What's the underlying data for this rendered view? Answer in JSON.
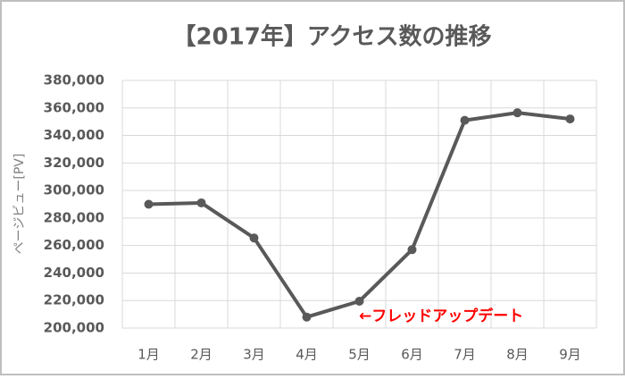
{
  "chart_data": {
    "type": "line",
    "title": "【2017年】アクセス数の推移",
    "y_label": "ページビュー[PV]",
    "annotation": "←フレッドアップデート",
    "categories": [
      "1月",
      "2月",
      "3月",
      "4月",
      "5月",
      "6月",
      "7月",
      "8月",
      "9月"
    ],
    "series": [
      {
        "name": "ページビュー",
        "color": "#595959",
        "values": [
          290000,
          291000,
          265500,
          208000,
          219500,
          257000,
          351000,
          356500,
          352000
        ]
      }
    ],
    "ylim": [
      200000,
      380000
    ],
    "yticks": [
      {
        "value": 200000,
        "label": "200,000"
      },
      {
        "value": 220000,
        "label": "220,000"
      },
      {
        "value": 240000,
        "label": "240,000"
      },
      {
        "value": 260000,
        "label": "260,000"
      },
      {
        "value": 280000,
        "label": "280,000"
      },
      {
        "value": 300000,
        "label": "300,000"
      },
      {
        "value": 320000,
        "label": "320,000"
      },
      {
        "value": 340000,
        "label": "340,000"
      },
      {
        "value": 360000,
        "label": "360,000"
      },
      {
        "value": 380000,
        "label": "380,000"
      }
    ],
    "grid": true,
    "annotation_color": "#ff0000"
  }
}
